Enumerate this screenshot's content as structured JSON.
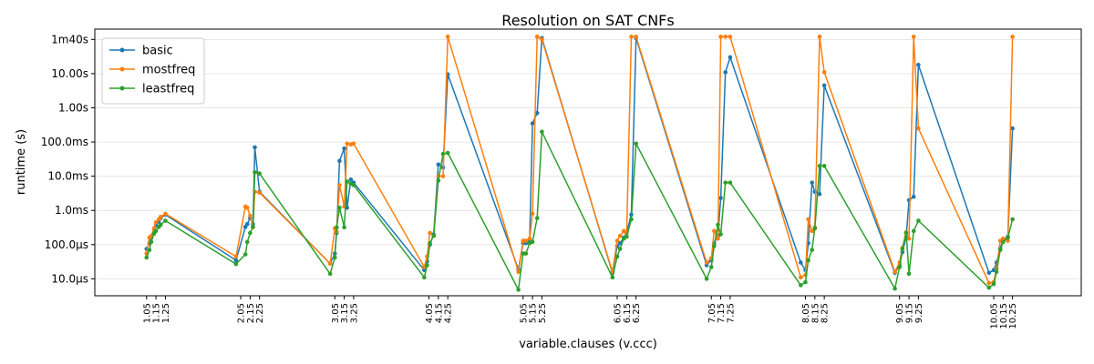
{
  "chart_data": {
    "type": "line",
    "title": "Resolution on SAT CNFs",
    "xlabel": "variable.clauses (v.ccc)",
    "ylabel": "runtime (s)",
    "yscale": "log",
    "ylim": [
      3.2e-06,
      200
    ],
    "xlim": [
      0.5,
      10.98
    ],
    "grid": "horizontal",
    "legend_position": "top-left",
    "yticks": [
      {
        "value": 1e-05,
        "label": "10.0µs"
      },
      {
        "value": 0.0001,
        "label": "100.0µs"
      },
      {
        "value": 0.001,
        "label": "1.0ms"
      },
      {
        "value": 0.01,
        "label": "10.0ms"
      },
      {
        "value": 0.1,
        "label": "100.0ms"
      },
      {
        "value": 1,
        "label": "1.00s"
      },
      {
        "value": 10,
        "label": "10.00s"
      },
      {
        "value": 100,
        "label": "1m40s"
      }
    ],
    "xticks": [
      {
        "value": 1.05,
        "label": "1.05"
      },
      {
        "value": 1.15,
        "label": "1.15"
      },
      {
        "value": 1.25,
        "label": "1.25"
      },
      {
        "value": 2.05,
        "label": "2.05"
      },
      {
        "value": 2.15,
        "label": "2.15"
      },
      {
        "value": 2.25,
        "label": "2.25"
      },
      {
        "value": 3.05,
        "label": "3.05"
      },
      {
        "value": 3.15,
        "label": "3.15"
      },
      {
        "value": 3.25,
        "label": "3.25"
      },
      {
        "value": 4.05,
        "label": "4.05"
      },
      {
        "value": 4.15,
        "label": "4.15"
      },
      {
        "value": 4.25,
        "label": "4.25"
      },
      {
        "value": 5.05,
        "label": "5.05"
      },
      {
        "value": 5.15,
        "label": "5.15"
      },
      {
        "value": 5.25,
        "label": "5.25"
      },
      {
        "value": 6.05,
        "label": "6.05"
      },
      {
        "value": 6.15,
        "label": "6.15"
      },
      {
        "value": 6.25,
        "label": "6.25"
      },
      {
        "value": 7.05,
        "label": "7.05"
      },
      {
        "value": 7.15,
        "label": "7.15"
      },
      {
        "value": 7.25,
        "label": "7.25"
      },
      {
        "value": 8.05,
        "label": "8.05"
      },
      {
        "value": 8.15,
        "label": "8.15"
      },
      {
        "value": 8.25,
        "label": "8.25"
      },
      {
        "value": 9.05,
        "label": "9.05"
      },
      {
        "value": 9.15,
        "label": "9.15"
      },
      {
        "value": 9.25,
        "label": "9.25"
      },
      {
        "value": 10.05,
        "label": "10.05"
      },
      {
        "value": 10.15,
        "label": "10.15"
      },
      {
        "value": 10.25,
        "label": "10.25"
      }
    ],
    "x": [
      1.05,
      1.08,
      1.1,
      1.13,
      1.15,
      1.18,
      1.2,
      1.25,
      2.0,
      2.1,
      2.12,
      2.15,
      2.18,
      2.2,
      2.25,
      3.0,
      3.05,
      3.07,
      3.1,
      3.15,
      3.18,
      3.22,
      3.25,
      4.0,
      4.03,
      4.06,
      4.1,
      4.15,
      4.2,
      4.25,
      5.0,
      5.05,
      5.08,
      5.12,
      5.15,
      5.2,
      5.25,
      6.0,
      6.05,
      6.08,
      6.12,
      6.15,
      6.2,
      6.25,
      7.0,
      7.05,
      7.08,
      7.12,
      7.15,
      7.2,
      7.25,
      8.0,
      8.05,
      8.08,
      8.12,
      8.15,
      8.2,
      8.25,
      9.0,
      9.05,
      9.08,
      9.12,
      9.15,
      9.2,
      9.25,
      10.0,
      10.05,
      10.08,
      10.12,
      10.15,
      10.2,
      10.25
    ],
    "series": [
      {
        "name": "basic",
        "color": "#1f77b4",
        "values": [
          7.5e-05,
          0.00011,
          0.00016,
          0.00025,
          0.00036,
          0.00047,
          0.0006,
          0.00075,
          3.5e-05,
          0.00033,
          0.0004,
          0.0006,
          0.0004,
          0.07,
          0.0035,
          2.8e-05,
          5.5e-05,
          0.00022,
          0.028,
          0.065,
          0.0012,
          0.008,
          0.0065,
          1.8e-05,
          3.2e-05,
          0.0001,
          0.0002,
          0.022,
          0.018,
          9.5,
          1.9e-05,
          0.00011,
          0.00011,
          0.00014,
          0.35,
          0.7,
          110,
          1.5e-05,
          9e-05,
          0.00011,
          0.00016,
          0.00022,
          0.00075,
          110,
          2.5e-05,
          3.5e-05,
          0.00011,
          0.00018,
          0.0023,
          11,
          30,
          3e-05,
          1.8e-05,
          0.00011,
          0.0065,
          0.0035,
          0.003,
          4.5,
          1.5e-05,
          2.5e-05,
          6e-05,
          0.00017,
          0.002,
          0.0025,
          18,
          1.5e-05,
          1.8e-05,
          3e-05,
          8e-05,
          0.00013,
          0.00017,
          0.25
        ]
      },
      {
        "name": "mostfreq",
        "color": "#ff7f0e",
        "values": [
          5.5e-05,
          0.00016,
          0.00018,
          0.0003,
          0.00045,
          0.00055,
          0.00065,
          0.0008,
          4.5e-05,
          0.0013,
          0.0012,
          0.0007,
          0.00032,
          0.0035,
          0.0033,
          2.8e-05,
          0.0003,
          0.00024,
          0.0055,
          0.0013,
          0.09,
          0.085,
          0.09,
          2.2e-05,
          4.5e-05,
          0.00022,
          0.00018,
          0.01,
          0.01,
          120,
          1.6e-05,
          0.00013,
          0.00013,
          0.00015,
          0.0008,
          120,
          100,
          1.6e-05,
          0.00013,
          0.00018,
          0.00025,
          0.00017,
          120,
          120,
          3e-05,
          4e-05,
          0.00025,
          0.00015,
          120,
          120,
          120,
          1.1e-05,
          1.3e-05,
          0.00055,
          0.00025,
          0.00032,
          120,
          11,
          1.6e-05,
          3e-05,
          8e-05,
          0.00023,
          0.00015,
          120,
          0.25,
          7.5e-06,
          8e-06,
          2e-05,
          0.00013,
          0.00015,
          0.00013,
          120
        ]
      },
      {
        "name": "leastfreq",
        "color": "#2ca02c",
        "values": [
          4.2e-05,
          7e-05,
          0.00012,
          0.00021,
          0.00025,
          0.00033,
          0.00038,
          0.0005,
          2.7e-05,
          5.2e-05,
          0.00012,
          0.00022,
          0.00033,
          0.013,
          0.012,
          1.4e-05,
          4.2e-05,
          0.00032,
          0.0012,
          0.00032,
          0.007,
          0.006,
          0.0055,
          1.1e-05,
          2.5e-05,
          0.00011,
          0.00018,
          0.0075,
          0.045,
          0.048,
          4.8e-06,
          5.5e-05,
          5.5e-05,
          0.00011,
          0.00012,
          0.0006,
          0.2,
          1.1e-05,
          4.5e-05,
          7.5e-05,
          0.00015,
          0.00017,
          0.00055,
          0.09,
          1e-05,
          2.2e-05,
          9e-05,
          0.00038,
          0.0002,
          0.0065,
          0.0065,
          6.5e-06,
          8e-06,
          3.5e-05,
          7e-05,
          0.0003,
          0.02,
          0.02,
          5.2e-06,
          2.2e-05,
          7.5e-05,
          0.00022,
          1.4e-05,
          0.00025,
          0.0005,
          5.5e-06,
          7e-06,
          1.6e-05,
          7e-05,
          0.00012,
          0.00016,
          0.00055
        ]
      }
    ]
  }
}
